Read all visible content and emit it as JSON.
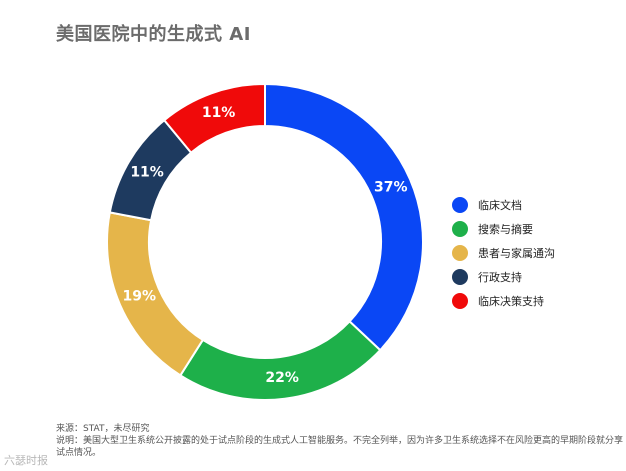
{
  "title": "美国医院中的生成式 AI",
  "chart_data": {
    "type": "pie",
    "categories": [
      "临床文档",
      "搜索与摘要",
      "患者与家属通沟",
      "行政支持",
      "临床决策支持"
    ],
    "values": [
      37,
      22,
      19,
      11,
      11
    ],
    "value_labels": [
      "37%",
      "22%",
      "19%",
      "11%",
      "11%"
    ],
    "colors": [
      "#0a47f5",
      "#1eb04a",
      "#e5b54a",
      "#1e3a5f",
      "#f00a0a"
    ],
    "legend_position": "right"
  },
  "source": "来源：STAT，未尽研究",
  "note": "说明：美国大型卫生系统公开披露的处于试点阶段的生成式人工智能服务。不完全列举，因为许多卫生系统选择不在风险更高的早期阶段就分享试点情况。",
  "watermark": "六瑟时报"
}
